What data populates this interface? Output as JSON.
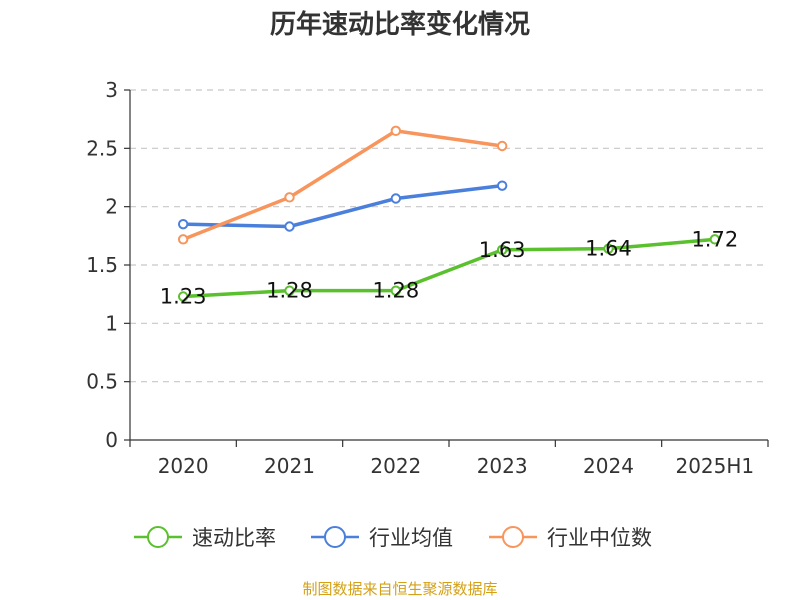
{
  "title": "历年速动比率变化情况",
  "source": "制图数据来自恒生聚源数据库",
  "chart_data": {
    "type": "line",
    "title": "历年速动比率变化情况",
    "xlabel": "",
    "ylabel": "",
    "categories": [
      "2020",
      "2021",
      "2022",
      "2023",
      "2024",
      "2025H1"
    ],
    "ylim": [
      0,
      3
    ],
    "yticks": [
      "0",
      "0.5",
      "1",
      "1.5",
      "2",
      "2.5",
      "3"
    ],
    "grid": true,
    "legend_position": "bottom",
    "series": [
      {
        "name": "速动比率",
        "color": "#5ac02e",
        "values": [
          1.23,
          1.28,
          1.28,
          1.63,
          1.64,
          1.72
        ],
        "labels": [
          "1.23",
          "1.28",
          "1.28",
          "1.63",
          "1.64",
          "1.72"
        ]
      },
      {
        "name": "行业均值",
        "color": "#4a7fdc",
        "values": [
          1.85,
          1.83,
          2.07,
          2.18,
          null,
          null
        ]
      },
      {
        "name": "行业中位数",
        "color": "#f7955c",
        "values": [
          1.72,
          2.08,
          2.65,
          2.52,
          null,
          null
        ]
      }
    ]
  }
}
